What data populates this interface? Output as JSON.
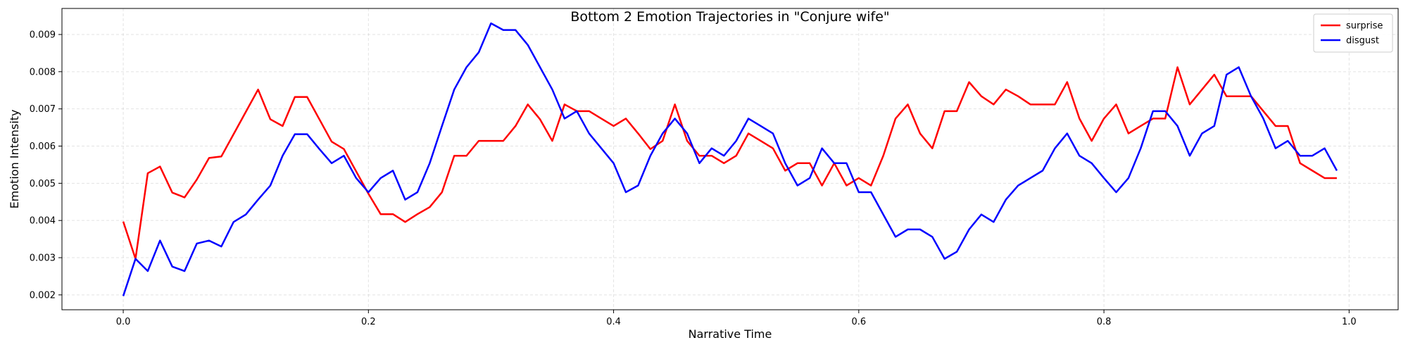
{
  "chart_data": {
    "type": "line",
    "title": "Bottom 2 Emotion Trajectories in \"Conjure wife\"",
    "xlabel": "Narrative Time",
    "ylabel": "Emotion Intensity",
    "xlim": [
      -0.05,
      1.04
    ],
    "ylim": [
      0.0016,
      0.0097
    ],
    "xticks": [
      0.0,
      0.2,
      0.4,
      0.6,
      0.8,
      1.0
    ],
    "xtick_labels": [
      "0.0",
      "0.2",
      "0.4",
      "0.6",
      "0.8",
      "1.0"
    ],
    "yticks": [
      0.002,
      0.003,
      0.004,
      0.005,
      0.006,
      0.007,
      0.008,
      0.009
    ],
    "ytick_labels": [
      "0.002",
      "0.003",
      "0.004",
      "0.005",
      "0.006",
      "0.007",
      "0.008",
      "0.009"
    ],
    "grid": true,
    "legend_position": "top-right",
    "x_start": 0.0,
    "x_step": 0.01,
    "series": [
      {
        "name": "surprise",
        "color": "#ff0000",
        "values": [
          0.00397,
          0.00297,
          0.00527,
          0.00545,
          0.00475,
          0.00462,
          0.0051,
          0.00568,
          0.00572,
          0.00632,
          0.00692,
          0.00752,
          0.00672,
          0.00654,
          0.00732,
          0.00732,
          0.00672,
          0.00612,
          0.00592,
          0.00532,
          0.00472,
          0.00417,
          0.00417,
          0.00396,
          0.00417,
          0.00436,
          0.00476,
          0.00574,
          0.00574,
          0.00614,
          0.00614,
          0.00614,
          0.00654,
          0.00712,
          0.00672,
          0.00614,
          0.00712,
          0.00694,
          0.00694,
          0.00674,
          0.00654,
          0.00674,
          0.00634,
          0.00592,
          0.00614,
          0.00712,
          0.00614,
          0.00574,
          0.00574,
          0.00554,
          0.00574,
          0.00634,
          0.00614,
          0.00594,
          0.00534,
          0.00554,
          0.00554,
          0.00494,
          0.00554,
          0.00494,
          0.00514,
          0.00494,
          0.00574,
          0.00674,
          0.00712,
          0.00634,
          0.00594,
          0.00694,
          0.00694,
          0.00772,
          0.00734,
          0.00712,
          0.00752,
          0.00734,
          0.00712,
          0.00712,
          0.00712,
          0.00772,
          0.00674,
          0.00614,
          0.00674,
          0.00712,
          0.00634,
          0.00654,
          0.00674,
          0.00674,
          0.00812,
          0.00712,
          0.00752,
          0.00792,
          0.00734,
          0.00734,
          0.00734,
          0.00694,
          0.00654,
          0.00654,
          0.00554,
          0.00534,
          0.00514,
          0.00514
        ]
      },
      {
        "name": "disgust",
        "color": "#0000ff",
        "values": [
          0.00197,
          0.00297,
          0.00264,
          0.00346,
          0.00276,
          0.00264,
          0.00338,
          0.00346,
          0.0033,
          0.00396,
          0.00416,
          0.00456,
          0.00494,
          0.00574,
          0.00632,
          0.00632,
          0.00592,
          0.00554,
          0.00574,
          0.00514,
          0.00476,
          0.00514,
          0.00534,
          0.00456,
          0.00476,
          0.00554,
          0.00654,
          0.00752,
          0.00812,
          0.00852,
          0.0093,
          0.00912,
          0.00912,
          0.00872,
          0.00812,
          0.00752,
          0.00674,
          0.00694,
          0.00634,
          0.00594,
          0.00554,
          0.00476,
          0.00494,
          0.00574,
          0.00634,
          0.00674,
          0.00634,
          0.00554,
          0.00594,
          0.00574,
          0.00614,
          0.00674,
          0.00654,
          0.00634,
          0.00554,
          0.00494,
          0.00514,
          0.00594,
          0.00554,
          0.00554,
          0.00476,
          0.00476,
          0.00416,
          0.00356,
          0.00376,
          0.00376,
          0.00356,
          0.00297,
          0.00316,
          0.00376,
          0.00416,
          0.00396,
          0.00456,
          0.00494,
          0.00514,
          0.00534,
          0.00594,
          0.00634,
          0.00574,
          0.00554,
          0.00514,
          0.00476,
          0.00514,
          0.00594,
          0.00694,
          0.00694,
          0.00654,
          0.00574,
          0.00634,
          0.00654,
          0.00792,
          0.00812,
          0.00734,
          0.00674,
          0.00594,
          0.00614,
          0.00574,
          0.00574,
          0.00594,
          0.00534
        ]
      }
    ]
  }
}
